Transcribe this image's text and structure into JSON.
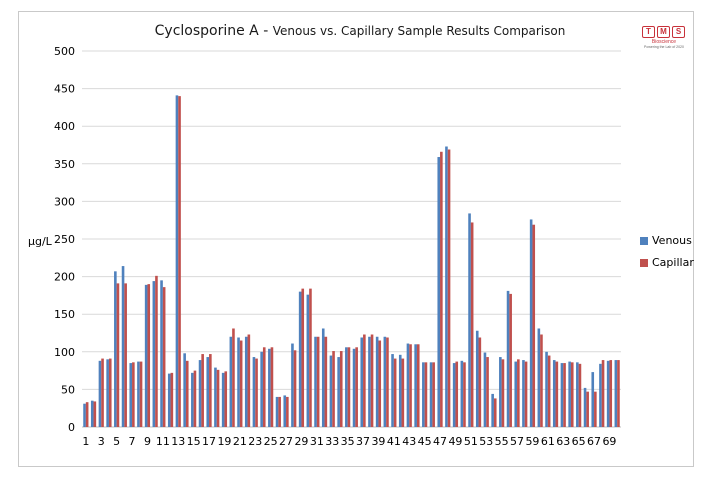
{
  "chart_data": {
    "type": "bar",
    "title": "Cyclosporine A - ",
    "subtitle": "Venous vs. Capillary Sample Results Comparison",
    "ylabel": "µg/L",
    "xlabel": "",
    "ylim": [
      0,
      500
    ],
    "yticks": [
      0,
      50,
      100,
      150,
      200,
      250,
      300,
      350,
      400,
      450,
      500
    ],
    "grid": true,
    "legend_position": "right",
    "categories": [
      1,
      2,
      3,
      4,
      5,
      6,
      7,
      8,
      9,
      10,
      11,
      12,
      13,
      14,
      15,
      16,
      17,
      18,
      19,
      20,
      21,
      22,
      23,
      24,
      25,
      26,
      27,
      28,
      29,
      30,
      31,
      32,
      33,
      34,
      35,
      36,
      37,
      38,
      39,
      40,
      41,
      42,
      43,
      44,
      45,
      46,
      47,
      48,
      49,
      50,
      51,
      52,
      53,
      54,
      55,
      56,
      57,
      58,
      59,
      60,
      61,
      62,
      63,
      64,
      65,
      66,
      67,
      68,
      69,
      70
    ],
    "x_tick_labels": [
      "1",
      "3",
      "5",
      "7",
      "9",
      "11",
      "13",
      "15",
      "17",
      "19",
      "21",
      "23",
      "25",
      "27",
      "29",
      "31",
      "33",
      "35",
      "37",
      "39",
      "41",
      "43",
      "45",
      "47",
      "49",
      "51",
      "53",
      "55",
      "57",
      "59",
      "61",
      "63",
      "65",
      "67",
      "69"
    ],
    "series": [
      {
        "name": "Venous",
        "color": "#4f81bd",
        "values": [
          31,
          35,
          88,
          90,
          207,
          214,
          85,
          87,
          189,
          194,
          195,
          71,
          441,
          98,
          72,
          89,
          93,
          79,
          72,
          120,
          119,
          120,
          93,
          100,
          104,
          40,
          42,
          111,
          180,
          176,
          120,
          131,
          95,
          93,
          106,
          104,
          119,
          120,
          120,
          120,
          97,
          96,
          111,
          110,
          86,
          86,
          359,
          373,
          85,
          88,
          284,
          128,
          99,
          44,
          93,
          181,
          87,
          89,
          276,
          131,
          100,
          89,
          85,
          87,
          86,
          52,
          73,
          84,
          88,
          89
        ]
      },
      {
        "name": "Capillar",
        "color": "#c0504d",
        "values": [
          33,
          34,
          91,
          91,
          191,
          191,
          86,
          87,
          190,
          201,
          186,
          72,
          440,
          88,
          75,
          97,
          97,
          76,
          74,
          131,
          115,
          123,
          91,
          106,
          106,
          40,
          40,
          102,
          184,
          184,
          120,
          120,
          101,
          101,
          106,
          106,
          123,
          123,
          115,
          119,
          91,
          91,
          110,
          110,
          86,
          86,
          366,
          369,
          87,
          86,
          272,
          119,
          93,
          38,
          90,
          177,
          90,
          87,
          269,
          123,
          95,
          87,
          85,
          86,
          84,
          47,
          47,
          89,
          89,
          89
        ]
      }
    ]
  }
}
